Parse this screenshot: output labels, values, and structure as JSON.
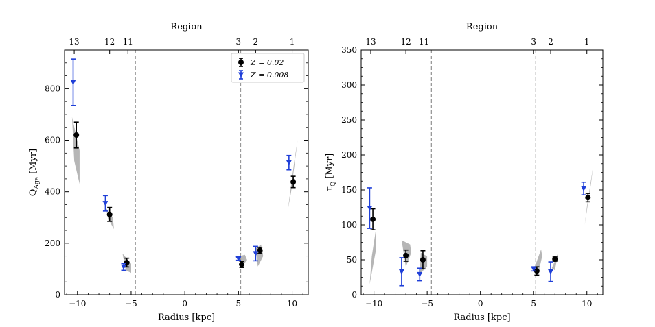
{
  "chart_data": [
    {
      "type": "scatter",
      "panel": "left",
      "title": "",
      "top_axis_label": "Region",
      "top_tick_labels": [
        {
          "x": -10.3,
          "label": "13"
        },
        {
          "x": -7.0,
          "label": "12"
        },
        {
          "x": -5.3,
          "label": "11"
        },
        {
          "x": 5.0,
          "label": "3"
        },
        {
          "x": 6.6,
          "label": "2"
        },
        {
          "x": 10.0,
          "label": "1"
        }
      ],
      "xlabel": "Radius [kpc]",
      "ylabel": "Q",
      "ylabel_sub": "Age",
      "ylabel_unit": " [Myr]",
      "xlim": [
        -11.2,
        11.5
      ],
      "ylim": [
        0,
        950
      ],
      "xticks": [
        -10,
        -5,
        0,
        5,
        10
      ],
      "xtick_labels": [
        "−10",
        "−5",
        "0",
        "5",
        "10"
      ],
      "yticks": [
        0,
        200,
        400,
        600,
        800
      ],
      "ytick_labels": [
        "0",
        "200",
        "400",
        "600",
        "800"
      ],
      "vlines": [
        -4.6,
        5.2
      ],
      "legend": {
        "position": "top-right",
        "entries": [
          {
            "label": "Z = 0.02",
            "series": 0
          },
          {
            "label": "Z = 0.008",
            "series": 1
          }
        ]
      },
      "series": [
        {
          "name": "Z = 0.02",
          "color": "#000000",
          "marker": "circle",
          "points": [
            {
              "x": -10.1,
              "y": 620,
              "err": 50
            },
            {
              "x": -7.0,
              "y": 312,
              "err": 27
            },
            {
              "x": -5.4,
              "y": 125,
              "err": 17
            },
            {
              "x": 5.3,
              "y": 118,
              "err": 12
            },
            {
              "x": 7.0,
              "y": 172,
              "err": 12
            },
            {
              "x": 10.1,
              "y": 438,
              "err": 22
            }
          ]
        },
        {
          "name": "Z = 0.008",
          "color": "#1f3fd8",
          "marker": "triangle-down",
          "points": [
            {
              "x": -10.4,
              "y": 825,
              "err": 90
            },
            {
              "x": -7.4,
              "y": 355,
              "err": 30
            },
            {
              "x": -5.7,
              "y": 108,
              "err": 13
            },
            {
              "x": 5.0,
              "y": 140,
              "err": 6
            },
            {
              "x": 6.6,
              "y": 160,
              "err": 28
            },
            {
              "x": 9.7,
              "y": 513,
              "err": 28
            }
          ]
        }
      ],
      "shaded_regions": [
        {
          "polygon": [
            [
              -10.5,
              690
            ],
            [
              -10.3,
              520
            ],
            [
              -9.8,
              430
            ],
            [
              -9.8,
              560
            ]
          ]
        },
        {
          "polygon": [
            [
              -7.4,
              340
            ],
            [
              -7.0,
              285
            ],
            [
              -6.6,
              255
            ],
            [
              -6.7,
              300
            ]
          ]
        },
        {
          "polygon": [
            [
              -5.8,
              160
            ],
            [
              -5.5,
              95
            ],
            [
              -5.0,
              85
            ],
            [
              -5.0,
              120
            ]
          ]
        },
        {
          "polygon": [
            [
              5.1,
              150
            ],
            [
              5.3,
              110
            ],
            [
              5.8,
              135
            ],
            [
              5.6,
              155
            ]
          ]
        },
        {
          "polygon": [
            [
              6.6,
              180
            ],
            [
              6.8,
              110
            ],
            [
              7.3,
              150
            ],
            [
              7.1,
              195
            ]
          ]
        },
        {
          "polygon": [
            [
              9.6,
              330
            ],
            [
              9.9,
              400
            ],
            [
              10.5,
              600
            ],
            [
              10.2,
              520
            ]
          ]
        }
      ]
    },
    {
      "type": "scatter",
      "panel": "right",
      "title": "",
      "top_axis_label": "Region",
      "top_tick_labels": [
        {
          "x": -10.3,
          "label": "13"
        },
        {
          "x": -7.0,
          "label": "12"
        },
        {
          "x": -5.3,
          "label": "11"
        },
        {
          "x": 5.0,
          "label": "3"
        },
        {
          "x": 6.6,
          "label": "2"
        },
        {
          "x": 10.0,
          "label": "1"
        }
      ],
      "xlabel": "Radius [kpc]",
      "ylabel": "τ",
      "ylabel_sub": "Q",
      "ylabel_unit": " [Myr]",
      "xlim": [
        -11.2,
        11.5
      ],
      "ylim": [
        0,
        350
      ],
      "xticks": [
        -10,
        -5,
        0,
        5,
        10
      ],
      "xtick_labels": [
        "−10",
        "−5",
        "0",
        "5",
        "10"
      ],
      "yticks": [
        0,
        50,
        100,
        150,
        200,
        250,
        300,
        350
      ],
      "ytick_labels": [
        "0",
        "50",
        "100",
        "150",
        "200",
        "250",
        "300",
        "350"
      ],
      "vlines": [
        -4.6,
        5.2
      ],
      "series": [
        {
          "name": "Z = 0.02",
          "color": "#000000",
          "marker": "circle",
          "points": [
            {
              "x": -10.1,
              "y": 108,
              "err": 15
            },
            {
              "x": -7.0,
              "y": 56,
              "err": 8
            },
            {
              "x": -5.4,
              "y": 50,
              "err": 13
            },
            {
              "x": 5.3,
              "y": 34,
              "err": 6
            },
            {
              "x": 7.0,
              "y": 51,
              "err": 3
            },
            {
              "x": 10.1,
              "y": 139,
              "err": 6
            }
          ]
        },
        {
          "name": "Z = 0.008",
          "color": "#1f3fd8",
          "marker": "triangle-down",
          "points": [
            {
              "x": -10.4,
              "y": 124,
              "err": 29
            },
            {
              "x": -7.4,
              "y": 33,
              "err": 20
            },
            {
              "x": -5.7,
              "y": 29,
              "err": 9
            },
            {
              "x": 5.0,
              "y": 37,
              "err": 3
            },
            {
              "x": 6.6,
              "y": 33,
              "err": 14
            },
            {
              "x": 9.7,
              "y": 152,
              "err": 9
            }
          ]
        }
      ],
      "shaded_regions": [
        {
          "polygon": [
            [
              -10.4,
              15
            ],
            [
              -10.2,
              55
            ],
            [
              -9.8,
              95
            ],
            [
              -9.8,
              65
            ]
          ]
        },
        {
          "polygon": [
            [
              -7.4,
              78
            ],
            [
              -7.0,
              40
            ],
            [
              -6.5,
              60
            ],
            [
              -6.6,
              72
            ]
          ]
        },
        {
          "polygon": [
            [
              -5.7,
              30
            ],
            [
              -5.6,
              60
            ],
            [
              -5.0,
              55
            ],
            [
              -5.0,
              40
            ]
          ]
        },
        {
          "polygon": [
            [
              5.1,
              40
            ],
            [
              5.4,
              28
            ],
            [
              5.8,
              55
            ],
            [
              5.7,
              65
            ]
          ]
        },
        {
          "polygon": [
            [
              6.7,
              38
            ],
            [
              6.9,
              45
            ],
            [
              7.3,
              60
            ],
            [
              7.0,
              35
            ]
          ]
        },
        {
          "polygon": [
            [
              9.8,
              100
            ],
            [
              10.0,
              125
            ],
            [
              10.6,
              185
            ],
            [
              10.4,
              160
            ]
          ]
        }
      ]
    }
  ]
}
